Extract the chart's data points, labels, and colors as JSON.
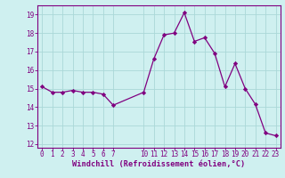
{
  "x": [
    0,
    1,
    2,
    3,
    4,
    5,
    6,
    7,
    10,
    11,
    12,
    13,
    14,
    15,
    16,
    17,
    18,
    19,
    20,
    21,
    22,
    23
  ],
  "y": [
    15.1,
    14.8,
    14.8,
    14.9,
    14.8,
    14.8,
    14.7,
    14.1,
    14.8,
    16.6,
    17.9,
    18.0,
    19.1,
    17.55,
    17.75,
    16.9,
    15.1,
    16.35,
    15.0,
    14.15,
    12.6,
    12.45
  ],
  "line_color": "#800080",
  "marker": "D",
  "marker_size": 2.2,
  "bg_color": "#cff0f0",
  "grid_color": "#aad8d8",
  "xlabel": "Windchill (Refroidissement éolien,°C)",
  "ylim": [
    11.8,
    19.5
  ],
  "xlim": [
    -0.5,
    23.5
  ],
  "yticks": [
    12,
    13,
    14,
    15,
    16,
    17,
    18,
    19
  ],
  "xticks": [
    0,
    1,
    2,
    3,
    4,
    5,
    6,
    7,
    10,
    11,
    12,
    13,
    14,
    15,
    16,
    17,
    18,
    19,
    20,
    21,
    22,
    23
  ],
  "tick_color": "#800080",
  "label_color": "#800080",
  "spine_color": "#800080",
  "tick_fontsize": 5.5,
  "xlabel_fontsize": 6.2
}
